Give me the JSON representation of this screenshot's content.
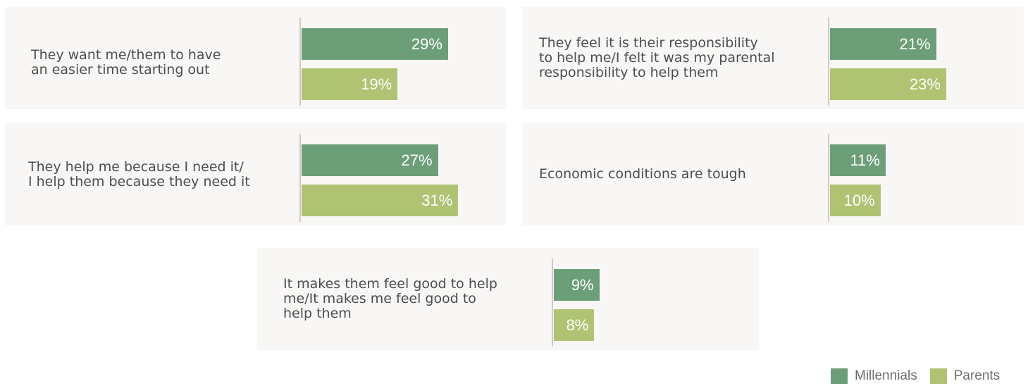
{
  "legend": {
    "millennials": "Millennials",
    "parents": "Parents"
  },
  "colors": {
    "millennials": "#6c9e78",
    "parents": "#afc373",
    "panel_bg": "#f8f7f5",
    "axis": "#d5c7c7"
  },
  "chart_data": {
    "type": "bar",
    "title": "",
    "series": [
      {
        "name": "Millennials",
        "values": [
          29,
          21,
          27,
          11,
          9
        ]
      },
      {
        "name": "Parents",
        "values": [
          19,
          23,
          31,
          10,
          8
        ]
      }
    ],
    "categories": [
      "They want me/them to have\nan easier time starting out",
      "They feel it is their responsibility\nto help me/I felt it was my parental\nresponsibility to help them",
      "They help me because I need it/\nI help them because they need it",
      "Economic conditions are tough",
      "It makes them feel good to help\nme/It makes me feel good to\nhelp them"
    ],
    "value_labels": [
      [
        "29%",
        "19%"
      ],
      [
        "21%",
        "23%"
      ],
      [
        "27%",
        "31%"
      ],
      [
        "11%",
        "10%"
      ],
      [
        "9%",
        "8%"
      ]
    ]
  }
}
